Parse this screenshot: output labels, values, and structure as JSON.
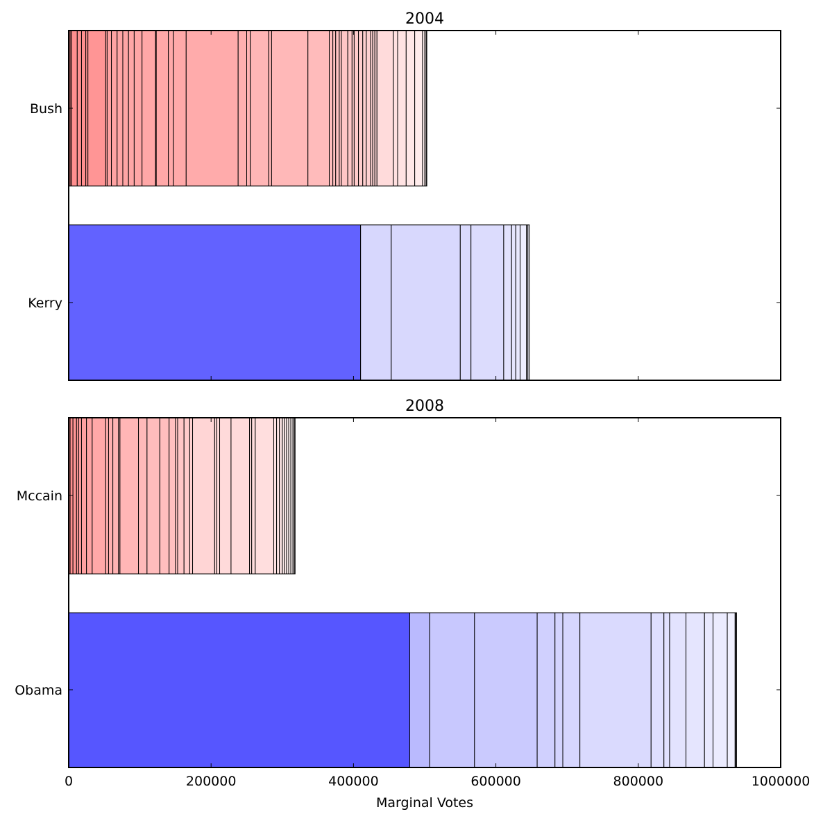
{
  "chart_data": [
    {
      "type": "bar",
      "orientation": "horizontal",
      "stacked": true,
      "title": "2004",
      "xlim": [
        0,
        1000000
      ],
      "xticks": [],
      "grid": false,
      "legend": "none",
      "series": [
        {
          "name": "Bush",
          "segments": [
            {
              "start": 0,
              "end": 2000,
              "color": "#ff8a8a"
            },
            {
              "start": 2000,
              "end": 4000,
              "color": "#ff8a8a"
            },
            {
              "start": 4000,
              "end": 12000,
              "color": "#ff8f8f"
            },
            {
              "start": 12000,
              "end": 18000,
              "color": "#ff9090"
            },
            {
              "start": 18000,
              "end": 24000,
              "color": "#ff9090"
            },
            {
              "start": 24000,
              "end": 27000,
              "color": "#ff9292"
            },
            {
              "start": 27000,
              "end": 52000,
              "color": "#ff9595"
            },
            {
              "start": 52000,
              "end": 54000,
              "color": "#ffa0a0"
            },
            {
              "start": 54000,
              "end": 60000,
              "color": "#ffa2a2"
            },
            {
              "start": 60000,
              "end": 68000,
              "color": "#ffa3a3"
            },
            {
              "start": 68000,
              "end": 76000,
              "color": "#ffa5a5"
            },
            {
              "start": 76000,
              "end": 84000,
              "color": "#ffa5a5"
            },
            {
              "start": 84000,
              "end": 92000,
              "color": "#ffa6a6"
            },
            {
              "start": 92000,
              "end": 103000,
              "color": "#ffa6a6"
            },
            {
              "start": 103000,
              "end": 122000,
              "color": "#ffa7a7"
            },
            {
              "start": 122000,
              "end": 123000,
              "color": "#ffa8a8"
            },
            {
              "start": 123000,
              "end": 140000,
              "color": "#ffa8a8"
            },
            {
              "start": 140000,
              "end": 147000,
              "color": "#ffa9a9"
            },
            {
              "start": 147000,
              "end": 165000,
              "color": "#ffa9a9"
            },
            {
              "start": 165000,
              "end": 238000,
              "color": "#ffabab"
            },
            {
              "start": 238000,
              "end": 250000,
              "color": "#ffb0b0"
            },
            {
              "start": 250000,
              "end": 255000,
              "color": "#ffb3b3"
            },
            {
              "start": 255000,
              "end": 281000,
              "color": "#ffb6b6"
            },
            {
              "start": 281000,
              "end": 285000,
              "color": "#ffb7b7"
            },
            {
              "start": 285000,
              "end": 336000,
              "color": "#ffb8b8"
            },
            {
              "start": 336000,
              "end": 366000,
              "color": "#ffbbbb"
            },
            {
              "start": 366000,
              "end": 371000,
              "color": "#ffbebe"
            },
            {
              "start": 371000,
              "end": 375000,
              "color": "#ffc0c0"
            },
            {
              "start": 375000,
              "end": 380000,
              "color": "#ffc2c2"
            },
            {
              "start": 380000,
              "end": 383000,
              "color": "#ffc4c4"
            },
            {
              "start": 383000,
              "end": 392000,
              "color": "#ffc6c6"
            },
            {
              "start": 392000,
              "end": 398000,
              "color": "#ffc8c8"
            },
            {
              "start": 398000,
              "end": 401000,
              "color": "#ffcaca"
            },
            {
              "start": 401000,
              "end": 407000,
              "color": "#ffcbcb"
            },
            {
              "start": 407000,
              "end": 413000,
              "color": "#ffcdcd"
            },
            {
              "start": 413000,
              "end": 418000,
              "color": "#ffcfcf"
            },
            {
              "start": 418000,
              "end": 424000,
              "color": "#ffd1d1"
            },
            {
              "start": 424000,
              "end": 427000,
              "color": "#ffd3d3"
            },
            {
              "start": 427000,
              "end": 430000,
              "color": "#ffd5d5"
            },
            {
              "start": 430000,
              "end": 433000,
              "color": "#ffd7d7"
            },
            {
              "start": 433000,
              "end": 456000,
              "color": "#ffdbdb"
            },
            {
              "start": 456000,
              "end": 462000,
              "color": "#ffe0e0"
            },
            {
              "start": 462000,
              "end": 474000,
              "color": "#ffe3e3"
            },
            {
              "start": 474000,
              "end": 486000,
              "color": "#ffe8e8"
            },
            {
              "start": 486000,
              "end": 497000,
              "color": "#ffecec"
            },
            {
              "start": 497000,
              "end": 500000,
              "color": "#fff0f0"
            },
            {
              "start": 500000,
              "end": 502000,
              "color": "#fff2f2"
            },
            {
              "start": 502000,
              "end": 503000,
              "color": "#fff4f4"
            }
          ]
        },
        {
          "name": "Kerry",
          "segments": [
            {
              "start": 0,
              "end": 410000,
              "color": "#6262ff"
            },
            {
              "start": 410000,
              "end": 453000,
              "color": "#d7d7fd"
            },
            {
              "start": 453000,
              "end": 550000,
              "color": "#d8d8fd"
            },
            {
              "start": 550000,
              "end": 565000,
              "color": "#dadafd"
            },
            {
              "start": 565000,
              "end": 611000,
              "color": "#dcdcfd"
            },
            {
              "start": 611000,
              "end": 622000,
              "color": "#e2e2fd"
            },
            {
              "start": 622000,
              "end": 628000,
              "color": "#e5e5fd"
            },
            {
              "start": 628000,
              "end": 634000,
              "color": "#e9e9fe"
            },
            {
              "start": 634000,
              "end": 643000,
              "color": "#ededfe"
            },
            {
              "start": 643000,
              "end": 645000,
              "color": "#f1f1fe"
            },
            {
              "start": 645000,
              "end": 647000,
              "color": "#f5f5fe"
            }
          ]
        }
      ]
    },
    {
      "type": "bar",
      "orientation": "horizontal",
      "stacked": true,
      "title": "2008",
      "xlabel": "Marginal Votes",
      "xlim": [
        0,
        1000000
      ],
      "xticks": [
        "0",
        "200000",
        "400000",
        "600000",
        "800000",
        "1000000"
      ],
      "grid": false,
      "legend": "none",
      "series": [
        {
          "name": "Mccain",
          "segments": [
            {
              "start": 0,
              "end": 2000,
              "color": "#ff8a8a"
            },
            {
              "start": 2000,
              "end": 6000,
              "color": "#ff9090"
            },
            {
              "start": 6000,
              "end": 11000,
              "color": "#ff9595"
            },
            {
              "start": 11000,
              "end": 14000,
              "color": "#ff9a9a"
            },
            {
              "start": 14000,
              "end": 18000,
              "color": "#ff9e9e"
            },
            {
              "start": 18000,
              "end": 25000,
              "color": "#ffa1a1"
            },
            {
              "start": 25000,
              "end": 33000,
              "color": "#ffa4a4"
            },
            {
              "start": 33000,
              "end": 52000,
              "color": "#ffa8a8"
            },
            {
              "start": 52000,
              "end": 56000,
              "color": "#ffacac"
            },
            {
              "start": 56000,
              "end": 62000,
              "color": "#ffafaf"
            },
            {
              "start": 62000,
              "end": 70000,
              "color": "#ffb2b2"
            },
            {
              "start": 70000,
              "end": 72000,
              "color": "#ffb4b4"
            },
            {
              "start": 72000,
              "end": 98000,
              "color": "#ffb6b6"
            },
            {
              "start": 98000,
              "end": 110000,
              "color": "#ffb9b9"
            },
            {
              "start": 110000,
              "end": 128000,
              "color": "#ffbcbc"
            },
            {
              "start": 128000,
              "end": 141000,
              "color": "#ffbebe"
            },
            {
              "start": 141000,
              "end": 150000,
              "color": "#ffc0c0"
            },
            {
              "start": 150000,
              "end": 153000,
              "color": "#ffc3c3"
            },
            {
              "start": 153000,
              "end": 162000,
              "color": "#ffc6c6"
            },
            {
              "start": 162000,
              "end": 170000,
              "color": "#ffcbcb"
            },
            {
              "start": 170000,
              "end": 174000,
              "color": "#ffd0d0"
            },
            {
              "start": 174000,
              "end": 205000,
              "color": "#ffd5d5"
            },
            {
              "start": 205000,
              "end": 208000,
              "color": "#ffd7d7"
            },
            {
              "start": 208000,
              "end": 212000,
              "color": "#ffd9d9"
            },
            {
              "start": 212000,
              "end": 228000,
              "color": "#ffdada"
            },
            {
              "start": 228000,
              "end": 254000,
              "color": "#ffdbdb"
            },
            {
              "start": 254000,
              "end": 257000,
              "color": "#ffdcdc"
            },
            {
              "start": 257000,
              "end": 262000,
              "color": "#ffdddd"
            },
            {
              "start": 262000,
              "end": 288000,
              "color": "#ffdede"
            },
            {
              "start": 288000,
              "end": 292000,
              "color": "#ffe1e1"
            },
            {
              "start": 292000,
              "end": 296000,
              "color": "#ffe4e4"
            },
            {
              "start": 296000,
              "end": 300000,
              "color": "#ffe7e7"
            },
            {
              "start": 300000,
              "end": 303000,
              "color": "#ffeaea"
            },
            {
              "start": 303000,
              "end": 306000,
              "color": "#ffeded"
            },
            {
              "start": 306000,
              "end": 309000,
              "color": "#fff0f0"
            },
            {
              "start": 309000,
              "end": 312000,
              "color": "#fff2f2"
            },
            {
              "start": 312000,
              "end": 315000,
              "color": "#fff4f4"
            },
            {
              "start": 315000,
              "end": 317000,
              "color": "#fff6f6"
            },
            {
              "start": 317000,
              "end": 318000,
              "color": "#fff8f8"
            }
          ]
        },
        {
          "name": "Obama",
          "segments": [
            {
              "start": 0,
              "end": 479000,
              "color": "#5656ff"
            },
            {
              "start": 479000,
              "end": 507000,
              "color": "#babafe"
            },
            {
              "start": 507000,
              "end": 570000,
              "color": "#c8c8fe"
            },
            {
              "start": 570000,
              "end": 658000,
              "color": "#cacafe"
            },
            {
              "start": 658000,
              "end": 683000,
              "color": "#d0d0fe"
            },
            {
              "start": 683000,
              "end": 694000,
              "color": "#d4d4fe"
            },
            {
              "start": 694000,
              "end": 718000,
              "color": "#d6d6fe"
            },
            {
              "start": 718000,
              "end": 818000,
              "color": "#dadafe"
            },
            {
              "start": 818000,
              "end": 836000,
              "color": "#dfdffe"
            },
            {
              "start": 836000,
              "end": 844000,
              "color": "#e1e1fe"
            },
            {
              "start": 844000,
              "end": 867000,
              "color": "#e3e3fe"
            },
            {
              "start": 867000,
              "end": 893000,
              "color": "#e5e5fe"
            },
            {
              "start": 893000,
              "end": 905000,
              "color": "#e8e8fe"
            },
            {
              "start": 905000,
              "end": 925000,
              "color": "#ebebfe"
            },
            {
              "start": 925000,
              "end": 936000,
              "color": "#f0f0fe"
            },
            {
              "start": 936000,
              "end": 937000,
              "color": "#f4f4fe"
            },
            {
              "start": 937000,
              "end": 938000,
              "color": "#f8f8fe"
            }
          ]
        }
      ]
    }
  ]
}
